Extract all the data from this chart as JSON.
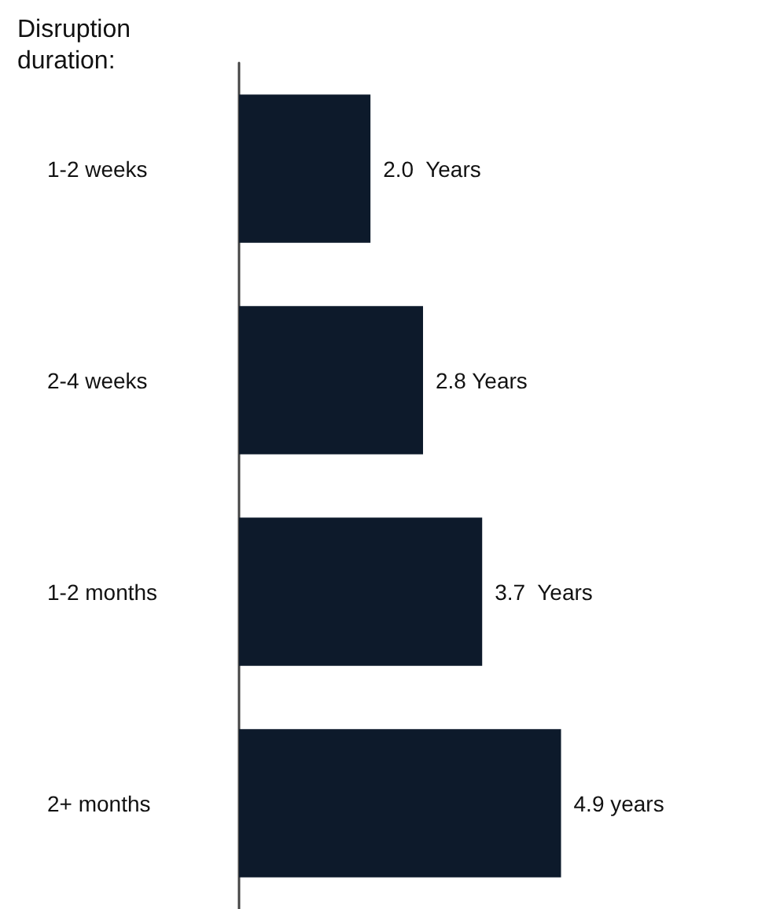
{
  "chart_data": {
    "type": "bar",
    "orientation": "horizontal",
    "ylabel": "Disruption duration:",
    "categories": [
      "1-2 weeks",
      "2-4 weeks",
      "1-2 months",
      "2+ months"
    ],
    "values": [
      2.0,
      2.8,
      3.7,
      4.9
    ],
    "value_labels": [
      "2.0  Years",
      "2.8 Years",
      "3.7  Years",
      "4.9 years"
    ],
    "color": "#0d1a2b"
  }
}
